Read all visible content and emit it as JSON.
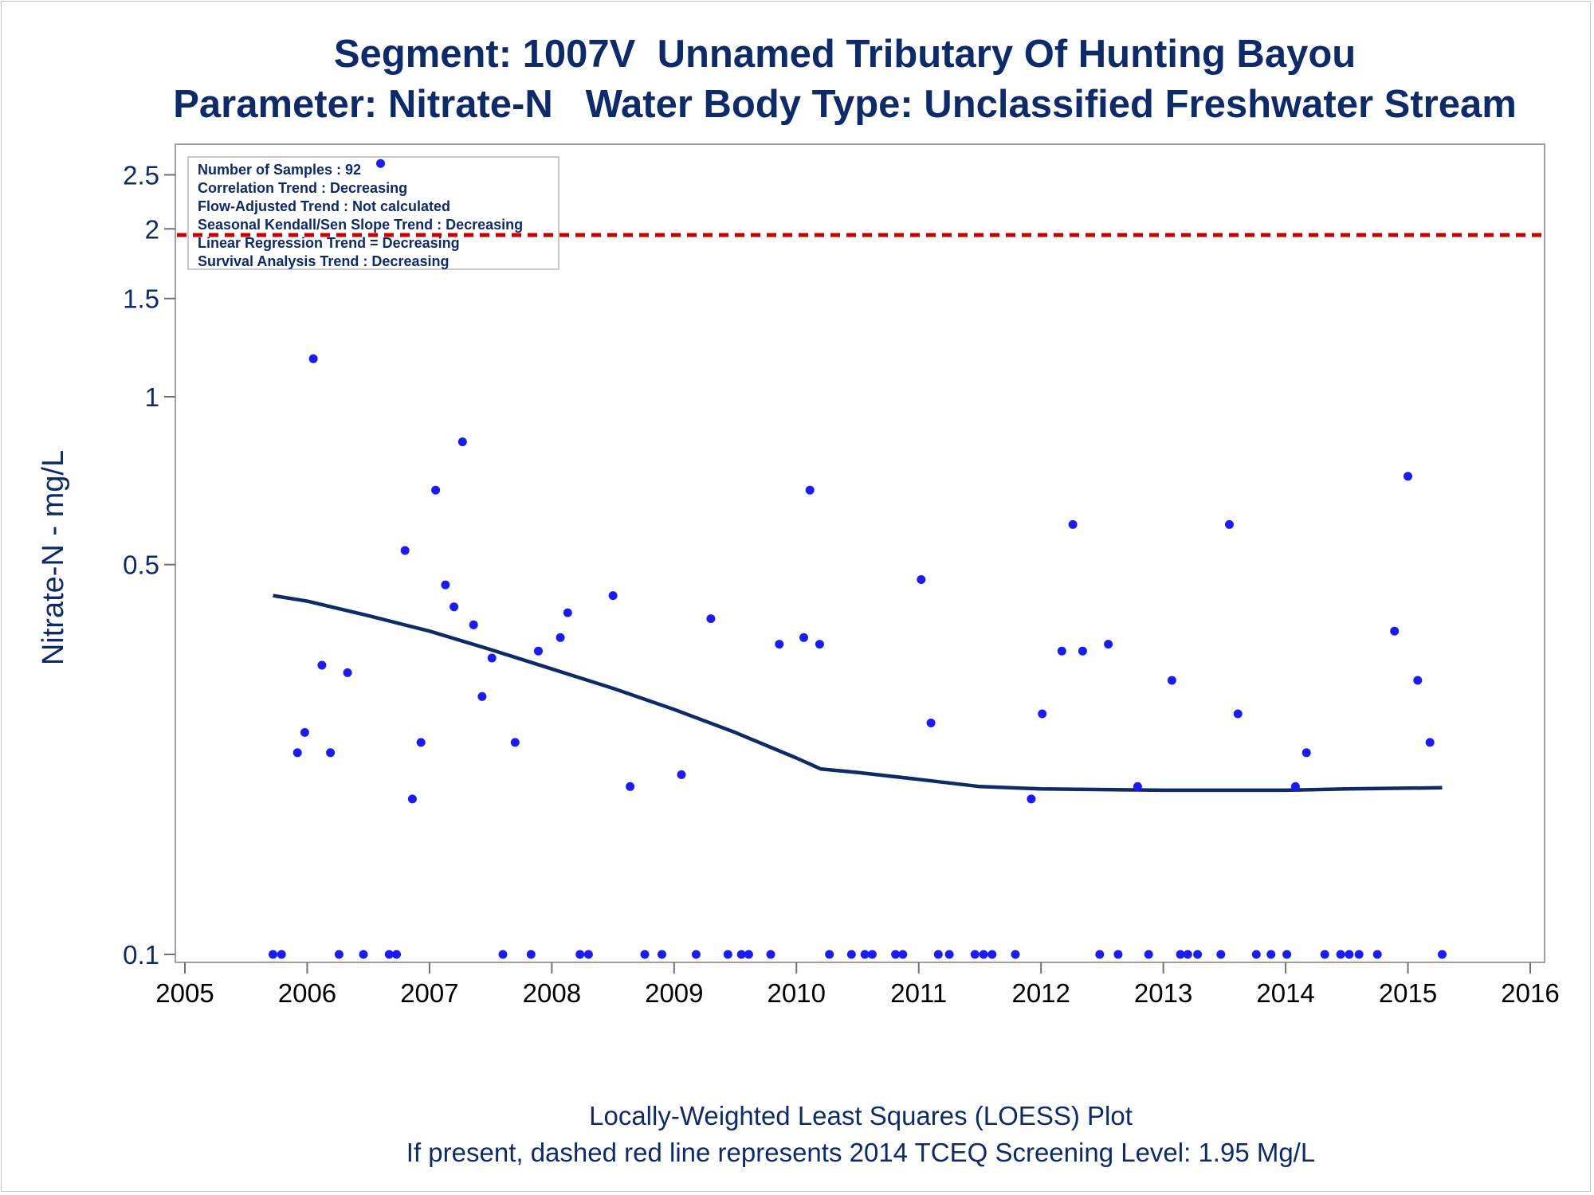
{
  "chart_data": {
    "type": "scatter",
    "title": "Segment: 1007V  Unnamed Tributary Of Hunting Bayou",
    "subtitle": "Parameter: Nitrate-N   Water Body Type: Unclassified Freshwater Stream",
    "xlabel": "",
    "ylabel": "Nitrate-N - mg/L",
    "y_scale": "log",
    "xlim": [
      2005,
      2016
    ],
    "ylim": [
      0.1,
      2.7
    ],
    "x_ticks": [
      "2005",
      "2006",
      "2007",
      "2008",
      "2009",
      "2010",
      "2011",
      "2012",
      "2013",
      "2014",
      "2015",
      "2016"
    ],
    "y_ticks": [
      {
        "value": 0.1,
        "label": "0.1"
      },
      {
        "value": 0.5,
        "label": "0.5"
      },
      {
        "value": 1,
        "label": "1"
      },
      {
        "value": 1.5,
        "label": "1.5"
      },
      {
        "value": 2,
        "label": "2"
      },
      {
        "value": 2.5,
        "label": "2.5"
      }
    ],
    "grid": false,
    "legend": "top-left",
    "annotation_lines": [
      "Number of Samples : 92",
      "Correlation Trend : Decreasing",
      "Flow-Adjusted Trend : Not calculated",
      "Seasonal Kendall/Sen Slope Trend : Decreasing",
      "Linear Regression Trend = Decreasing",
      "Survival Analysis Trend : Decreasing"
    ],
    "screening_level": 1.95,
    "colors": {
      "points": "#1a1aff",
      "loess": "#0d2b6b",
      "screening": "#cc0000",
      "text": "#0d2b6b"
    },
    "points": [
      {
        "x": 2005.72,
        "y": 0.1
      },
      {
        "x": 2005.79,
        "y": 0.1
      },
      {
        "x": 2005.92,
        "y": 0.23
      },
      {
        "x": 2005.98,
        "y": 0.25
      },
      {
        "x": 2006.05,
        "y": 1.17
      },
      {
        "x": 2006.12,
        "y": 0.33
      },
      {
        "x": 2006.19,
        "y": 0.23
      },
      {
        "x": 2006.26,
        "y": 0.1
      },
      {
        "x": 2006.33,
        "y": 0.32
      },
      {
        "x": 2006.46,
        "y": 0.1
      },
      {
        "x": 2006.6,
        "y": 2.62
      },
      {
        "x": 2006.67,
        "y": 0.1
      },
      {
        "x": 2006.73,
        "y": 0.1
      },
      {
        "x": 2006.8,
        "y": 0.53
      },
      {
        "x": 2006.86,
        "y": 0.19
      },
      {
        "x": 2006.93,
        "y": 0.24
      },
      {
        "x": 2007.05,
        "y": 0.68
      },
      {
        "x": 2007.13,
        "y": 0.46
      },
      {
        "x": 2007.2,
        "y": 0.42
      },
      {
        "x": 2007.27,
        "y": 0.83
      },
      {
        "x": 2007.36,
        "y": 0.39
      },
      {
        "x": 2007.43,
        "y": 0.29
      },
      {
        "x": 2007.51,
        "y": 0.34
      },
      {
        "x": 2007.6,
        "y": 0.1
      },
      {
        "x": 2007.7,
        "y": 0.24
      },
      {
        "x": 2007.83,
        "y": 0.1
      },
      {
        "x": 2007.89,
        "y": 0.35
      },
      {
        "x": 2008.07,
        "y": 0.37
      },
      {
        "x": 2008.13,
        "y": 0.41
      },
      {
        "x": 2008.23,
        "y": 0.1
      },
      {
        "x": 2008.3,
        "y": 0.1
      },
      {
        "x": 2008.5,
        "y": 0.44
      },
      {
        "x": 2008.64,
        "y": 0.2
      },
      {
        "x": 2008.76,
        "y": 0.1
      },
      {
        "x": 2008.9,
        "y": 0.1
      },
      {
        "x": 2009.06,
        "y": 0.21
      },
      {
        "x": 2009.18,
        "y": 0.1
      },
      {
        "x": 2009.3,
        "y": 0.4
      },
      {
        "x": 2009.44,
        "y": 0.1
      },
      {
        "x": 2009.55,
        "y": 0.1
      },
      {
        "x": 2009.61,
        "y": 0.1
      },
      {
        "x": 2009.79,
        "y": 0.1
      },
      {
        "x": 2009.86,
        "y": 0.36
      },
      {
        "x": 2010.06,
        "y": 0.37
      },
      {
        "x": 2010.11,
        "y": 0.68
      },
      {
        "x": 2010.19,
        "y": 0.36
      },
      {
        "x": 2010.27,
        "y": 0.1
      },
      {
        "x": 2010.45,
        "y": 0.1
      },
      {
        "x": 2010.56,
        "y": 0.1
      },
      {
        "x": 2010.62,
        "y": 0.1
      },
      {
        "x": 2010.81,
        "y": 0.1
      },
      {
        "x": 2010.87,
        "y": 0.1
      },
      {
        "x": 2011.02,
        "y": 0.47
      },
      {
        "x": 2011.1,
        "y": 0.26
      },
      {
        "x": 2011.16,
        "y": 0.1
      },
      {
        "x": 2011.25,
        "y": 0.1
      },
      {
        "x": 2011.46,
        "y": 0.1
      },
      {
        "x": 2011.53,
        "y": 0.1
      },
      {
        "x": 2011.6,
        "y": 0.1
      },
      {
        "x": 2011.79,
        "y": 0.1
      },
      {
        "x": 2011.92,
        "y": 0.19
      },
      {
        "x": 2012.01,
        "y": 0.27
      },
      {
        "x": 2012.17,
        "y": 0.35
      },
      {
        "x": 2012.26,
        "y": 0.59
      },
      {
        "x": 2012.34,
        "y": 0.35
      },
      {
        "x": 2012.48,
        "y": 0.1
      },
      {
        "x": 2012.55,
        "y": 0.36
      },
      {
        "x": 2012.63,
        "y": 0.1
      },
      {
        "x": 2012.79,
        "y": 0.2
      },
      {
        "x": 2012.88,
        "y": 0.1
      },
      {
        "x": 2013.07,
        "y": 0.31
      },
      {
        "x": 2013.14,
        "y": 0.1
      },
      {
        "x": 2013.2,
        "y": 0.1
      },
      {
        "x": 2013.28,
        "y": 0.1
      },
      {
        "x": 2013.47,
        "y": 0.1
      },
      {
        "x": 2013.54,
        "y": 0.59
      },
      {
        "x": 2013.61,
        "y": 0.27
      },
      {
        "x": 2013.76,
        "y": 0.1
      },
      {
        "x": 2013.88,
        "y": 0.1
      },
      {
        "x": 2014.01,
        "y": 0.1
      },
      {
        "x": 2014.08,
        "y": 0.2
      },
      {
        "x": 2014.17,
        "y": 0.23
      },
      {
        "x": 2014.32,
        "y": 0.1
      },
      {
        "x": 2014.45,
        "y": 0.1
      },
      {
        "x": 2014.52,
        "y": 0.1
      },
      {
        "x": 2014.6,
        "y": 0.1
      },
      {
        "x": 2014.75,
        "y": 0.1
      },
      {
        "x": 2014.89,
        "y": 0.38
      },
      {
        "x": 2015.0,
        "y": 0.72
      },
      {
        "x": 2015.08,
        "y": 0.31
      },
      {
        "x": 2015.18,
        "y": 0.24
      },
      {
        "x": 2015.28,
        "y": 0.1
      }
    ],
    "loess": [
      {
        "x": 2005.72,
        "y": 0.44
      },
      {
        "x": 2006.0,
        "y": 0.43
      },
      {
        "x": 2006.5,
        "y": 0.405
      },
      {
        "x": 2007.0,
        "y": 0.38
      },
      {
        "x": 2007.5,
        "y": 0.352
      },
      {
        "x": 2008.0,
        "y": 0.325
      },
      {
        "x": 2008.5,
        "y": 0.3
      },
      {
        "x": 2009.0,
        "y": 0.275
      },
      {
        "x": 2009.5,
        "y": 0.25
      },
      {
        "x": 2010.0,
        "y": 0.225
      },
      {
        "x": 2010.2,
        "y": 0.215
      },
      {
        "x": 2010.5,
        "y": 0.212
      },
      {
        "x": 2011.0,
        "y": 0.206
      },
      {
        "x": 2011.5,
        "y": 0.2
      },
      {
        "x": 2012.0,
        "y": 0.198
      },
      {
        "x": 2013.0,
        "y": 0.197
      },
      {
        "x": 2014.0,
        "y": 0.197
      },
      {
        "x": 2014.5,
        "y": 0.198
      },
      {
        "x": 2015.28,
        "y": 0.199
      }
    ],
    "footnote_1": "Locally-Weighted Least Squares (LOESS) Plot",
    "footnote_2": "If present, dashed red line represents 2014 TCEQ Screening Level: 1.95 Mg/L"
  }
}
